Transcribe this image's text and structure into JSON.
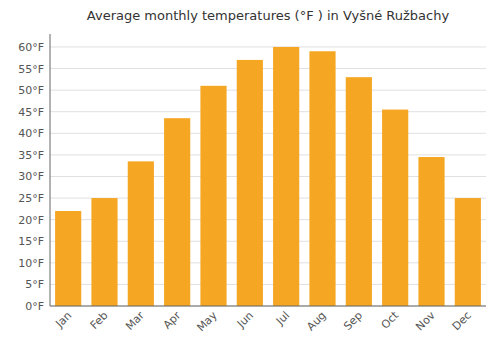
{
  "chart_data": {
    "type": "bar",
    "title": "Average monthly temperatures (°F ) in Vyšné Ružbachy",
    "categories": [
      "Jan",
      "Feb",
      "Mar",
      "Apr",
      "May",
      "Jun",
      "Jul",
      "Aug",
      "Sep",
      "Oct",
      "Nov",
      "Dec"
    ],
    "values": [
      22,
      25,
      33.5,
      43.5,
      51,
      57,
      60,
      59,
      53,
      45.5,
      34.5,
      25
    ],
    "color": "#F5A623",
    "ylim": [
      0,
      63
    ],
    "yticks": [
      {
        "value": 0,
        "label": "0°F"
      },
      {
        "value": 5,
        "label": "5°F"
      },
      {
        "value": 10,
        "label": "10°F"
      },
      {
        "value": 15,
        "label": "15°F"
      },
      {
        "value": 20,
        "label": "20°F"
      },
      {
        "value": 25,
        "label": "25°F"
      },
      {
        "value": 30,
        "label": "30°F"
      },
      {
        "value": 35,
        "label": "35°F"
      },
      {
        "value": 40,
        "label": "40°F"
      },
      {
        "value": 45,
        "label": "45°F"
      },
      {
        "value": 50,
        "label": "50°F"
      },
      {
        "value": 55,
        "label": "55°F"
      },
      {
        "value": 60,
        "label": "60°F"
      }
    ],
    "grid": true
  }
}
